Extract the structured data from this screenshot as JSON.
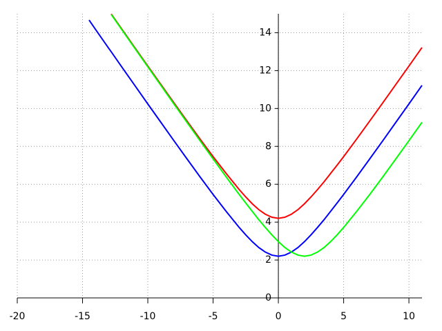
{
  "chart_data": {
    "type": "line",
    "x": [
      -14.5,
      -14,
      -13,
      -12.8,
      -12,
      -11,
      -10,
      -9,
      -8,
      -7,
      -6,
      -5,
      -4,
      -3,
      -2.5,
      -2,
      -1.5,
      -1,
      -0.5,
      0,
      0.5,
      1,
      1.5,
      2,
      2.5,
      3,
      3.5,
      4,
      4.5,
      5,
      6,
      7,
      8,
      9,
      10,
      11
    ],
    "series": [
      {
        "color": "#ff0000",
        "values": [
          null,
          null,
          null,
          14.99,
          14.2,
          13.22,
          12.24,
          11.27,
          10.3,
          9.34,
          8.39,
          7.46,
          6.57,
          5.72,
          5.33,
          4.97,
          4.66,
          4.42,
          4.26,
          4.2,
          4.26,
          4.42,
          4.66,
          4.97,
          5.33,
          5.72,
          6.13,
          6.57,
          7.01,
          7.46,
          8.39,
          9.34,
          10.3,
          11.27,
          12.24,
          13.22
        ]
      },
      {
        "color": "#0000ff",
        "values": [
          14.67,
          14.17,
          13.18,
          12.99,
          12.2,
          11.22,
          10.24,
          9.27,
          8.3,
          7.34,
          6.39,
          5.46,
          4.57,
          3.72,
          3.33,
          2.97,
          2.66,
          2.42,
          2.26,
          2.2,
          2.26,
          2.42,
          2.66,
          2.97,
          3.33,
          3.72,
          4.13,
          4.57,
          5.01,
          5.46,
          6.39,
          7.34,
          8.3,
          9.27,
          10.24,
          11.22
        ]
      },
      {
        "color": "#00ff00",
        "values": [
          null,
          null,
          null,
          14.96,
          14.17,
          13.18,
          12.2,
          11.22,
          10.24,
          9.27,
          8.3,
          7.34,
          6.39,
          5.46,
          5.01,
          4.57,
          4.13,
          3.72,
          3.33,
          2.97,
          2.66,
          2.42,
          2.26,
          2.2,
          2.26,
          2.42,
          2.66,
          2.97,
          3.33,
          3.72,
          4.57,
          5.46,
          6.39,
          7.34,
          8.3,
          9.27
        ]
      }
    ],
    "xlim": [
      -20,
      11
    ],
    "ylim": [
      0,
      15
    ],
    "xticks": [
      -20,
      -15,
      -10,
      -5,
      0,
      5,
      10
    ],
    "yticks": [
      0,
      2,
      4,
      6,
      8,
      10,
      12,
      14
    ],
    "grid": true
  }
}
